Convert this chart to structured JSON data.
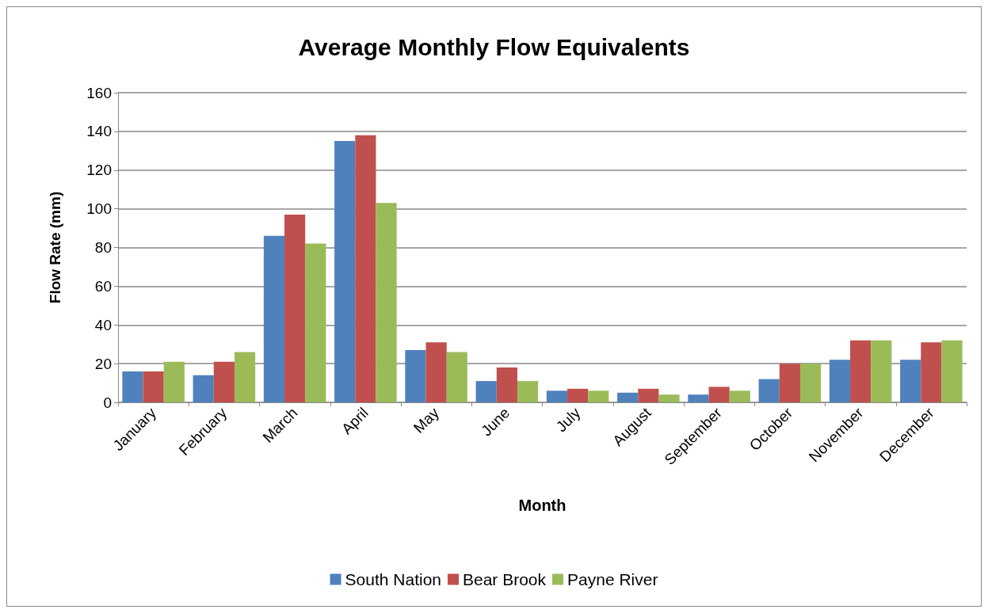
{
  "chart_data": {
    "type": "bar",
    "title": "Average Monthly Flow Equivalents",
    "xlabel": "Month",
    "ylabel": "Flow Rate (mm)",
    "categories": [
      "January",
      "February",
      "March",
      "April",
      "May",
      "June",
      "July",
      "August",
      "September",
      "October",
      "November",
      "December"
    ],
    "series": [
      {
        "name": "South Nation",
        "color": "#4f81bd",
        "values": [
          16,
          14,
          86,
          135,
          27,
          11,
          6,
          5,
          4,
          12,
          22,
          22
        ]
      },
      {
        "name": "Bear Brook",
        "color": "#c0504d",
        "values": [
          16,
          21,
          97,
          138,
          31,
          18,
          7,
          7,
          8,
          20,
          32,
          31
        ]
      },
      {
        "name": "Payne River",
        "color": "#9bbb59",
        "values": [
          21,
          26,
          82,
          103,
          26,
          11,
          6,
          4,
          6,
          20,
          32,
          32
        ]
      }
    ],
    "ylim": [
      0,
      160
    ],
    "yticks": [
      0,
      20,
      40,
      60,
      80,
      100,
      120,
      140,
      160
    ],
    "grid": "y",
    "legend": "bottom"
  }
}
